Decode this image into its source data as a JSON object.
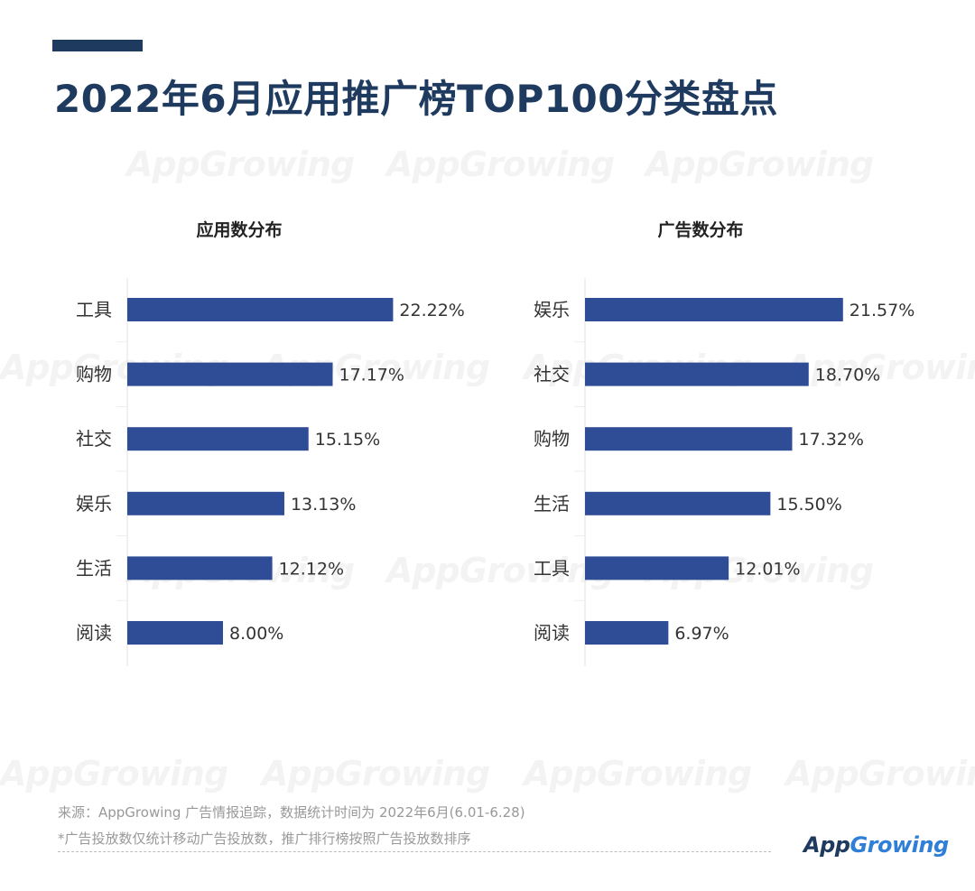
{
  "header": {
    "title": "2022年6月应用推广榜TOP100分类盘点"
  },
  "colors": {
    "accent": "#1f3a5f",
    "bar": "#2f4c97",
    "brand_blue": "#2f7fd8"
  },
  "watermark": {
    "prefix": "App",
    "suffix": "Growing"
  },
  "chart_data": [
    {
      "type": "bar",
      "orientation": "horizontal",
      "title": "应用数分布",
      "categories": [
        "工具",
        "购物",
        "社交",
        "娱乐",
        "生活",
        "阅读"
      ],
      "values": [
        22.22,
        17.17,
        15.15,
        13.13,
        12.12,
        8.0
      ],
      "value_labels": [
        "22.22%",
        "17.17%",
        "15.15%",
        "13.13%",
        "12.12%",
        "8.00%"
      ],
      "unit": "%",
      "grid": false
    },
    {
      "type": "bar",
      "orientation": "horizontal",
      "title": "广告数分布",
      "categories": [
        "娱乐",
        "社交",
        "购物",
        "生活",
        "工具",
        "阅读"
      ],
      "values": [
        21.57,
        18.7,
        17.32,
        15.5,
        12.01,
        6.97
      ],
      "value_labels": [
        "21.57%",
        "18.70%",
        "17.32%",
        "15.50%",
        "12.01%",
        "6.97%"
      ],
      "unit": "%",
      "grid": false
    }
  ],
  "footer": {
    "source": "来源：AppGrowing 广告情报追踪，数据统计时间为 2022年6月(6.01-6.28)",
    "note": "*广告投放数仅统计移动广告投放数，推广排行榜按照广告投放数排序"
  },
  "brand": {
    "prefix": "App",
    "suffix": "Growing"
  }
}
